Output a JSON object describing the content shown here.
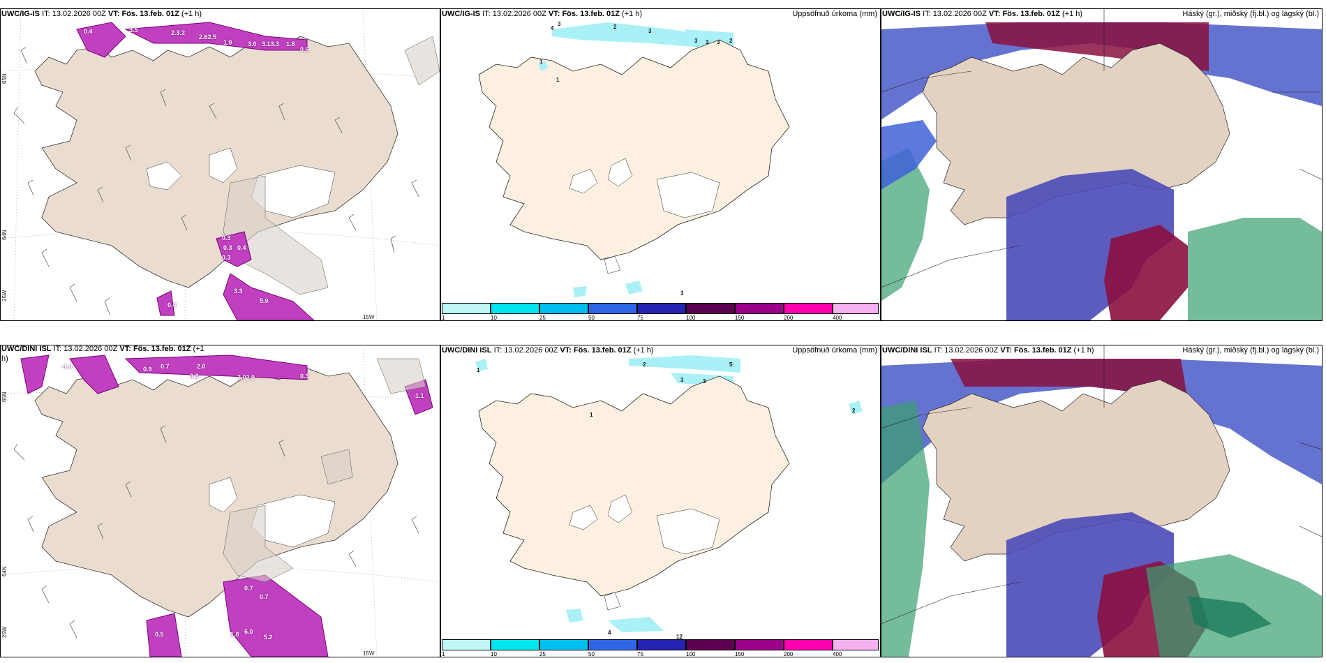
{
  "panels": {
    "p1": {
      "model": "UWC/IG-IS",
      "it_label": "IT:",
      "it": "13.02.2026 00Z",
      "vt_label": "VT:",
      "vt": "Fös. 13.feb. 01Z",
      "lead": "(+1 h)",
      "title": "",
      "lat_labels": [
        "65N",
        "64N",
        "25W"
      ],
      "lon_label": "15W"
    },
    "p2": {
      "model": "UWC/IG-IS",
      "it_label": "IT:",
      "it": "13.02.2026 00Z",
      "vt_label": "VT:",
      "vt": "Fös. 13.feb. 01Z",
      "lead": "(+1 h)",
      "title": "Uppsöfnuð úrkoma (mm)"
    },
    "p3": {
      "model": "UWC/IG-IS",
      "it_label": "IT:",
      "it": "13.02.2026 00Z",
      "vt_label": "VT:",
      "vt": "Fös. 13.feb. 01Z",
      "lead": "(+1 h)",
      "title": "Háský (gr.), miðský (fj.bl.) og lágský (bl.)"
    },
    "p4": {
      "model": "UWC/DINI ISL",
      "it_label": "IT:",
      "it": "13.02.2026 00Z",
      "vt_label": "VT:",
      "vt": "Fös. 13.feb. 01Z",
      "lead": "(+1",
      "lead2": "h)",
      "title": "",
      "lat_labels": [
        "65N",
        "64N",
        "25W"
      ],
      "lon_label": "15W"
    },
    "p5": {
      "model": "UWC/DINI ISL",
      "it_label": "IT:",
      "it": "13.02.2026 00Z",
      "vt_label": "VT:",
      "vt": "Fös. 13.feb. 01Z",
      "lead": "(+1 h)",
      "title": "Uppsöfnuð úrkoma (mm)"
    },
    "p6": {
      "model": "UWC/DINI ISL",
      "it_label": "IT:",
      "it": "13.02.2026 00Z",
      "vt_label": "VT:",
      "vt": "Fös. 13.feb. 01Z",
      "lead": "(+1 h)",
      "title": "Háský (gr.), miðský (fj.bl.) og lágský (bl.)"
    }
  },
  "colorbar": {
    "ticks": [
      "1",
      "10",
      "25",
      "50",
      "75",
      "100",
      "150",
      "200",
      "400"
    ],
    "colors": [
      "#bff6f8",
      "#00e5ee",
      "#00bfee",
      "#2f66e8",
      "#2323b0",
      "#5c0050",
      "#9a0088",
      "#ff00b0",
      "#f6b0f0"
    ]
  },
  "precip_labels_top": [
    "4",
    "3",
    "2",
    "3",
    "3",
    "3",
    "3",
    "2",
    "1",
    "1",
    "3"
  ],
  "precip_labels_bottom": [
    "1",
    "2",
    "5",
    "3",
    "3",
    "1",
    "2",
    "4",
    "12"
  ],
  "snow_labels_top": [
    "0.4",
    "3.5",
    "2.3.2",
    "2.62.5",
    "1.9",
    "3.0",
    "3.13.3",
    "1.8",
    "0.6",
    "0.3",
    "0.3",
    "0.3",
    "0.4",
    "3.3",
    "5.9",
    "0.4"
  ],
  "snow_labels_bottom": [
    "-1.0",
    "0.9",
    "0.7",
    "2.0",
    "0.3",
    "3.02.9",
    "0.3",
    "-1.1",
    "0.7",
    "0.7",
    "1.8",
    "6.0",
    "5.2",
    "0.5"
  ]
}
